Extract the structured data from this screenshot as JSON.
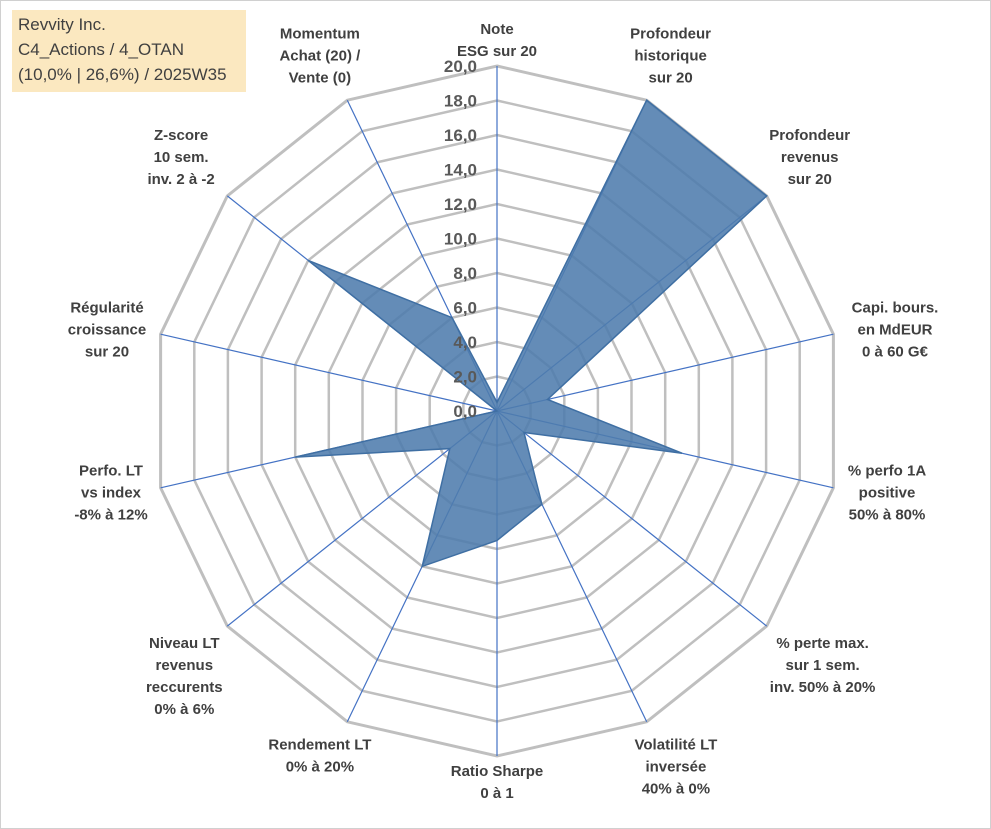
{
  "info": {
    "line1": "Revvity Inc.",
    "line2": "C4_Actions / 4_OTAN",
    "line3": "(10,0% | 26,6%) / 2025W35"
  },
  "chart_data": {
    "type": "radar",
    "title": "",
    "rlim": [
      0,
      20
    ],
    "ticks": [
      "0,0",
      "2,0",
      "4,0",
      "6,0",
      "8,0",
      "10,0",
      "12,0",
      "14,0",
      "16,0",
      "18,0",
      "20,0"
    ],
    "grid": true,
    "axes": [
      {
        "label": [
          "Note",
          "ESG sur 20"
        ],
        "value": 0.5
      },
      {
        "label": [
          "Profondeur",
          "historique",
          "sur 20"
        ],
        "value": 20
      },
      {
        "label": [
          "Profondeur",
          "revenus",
          "sur 20"
        ],
        "value": 20
      },
      {
        "label": [
          "Capi. bours.",
          "en MdEUR",
          "0 à 60 G€"
        ],
        "value": 3
      },
      {
        "label": [
          "% perfo 1A",
          "positive",
          "50% à 80%"
        ],
        "value": 11
      },
      {
        "label": [
          "% perte max.",
          "sur 1 sem.",
          "inv. 50% à 20%"
        ],
        "value": 2
      },
      {
        "label": [
          "Volatilité LT",
          "inversée",
          "40% à 0%"
        ],
        "value": 6
      },
      {
        "label": [
          "Ratio Sharpe",
          "0 à 1"
        ],
        "value": 7.5
      },
      {
        "label": [
          "Rendement LT",
          "0% à 20%"
        ],
        "value": 10
      },
      {
        "label": [
          "Niveau LT",
          "revenus",
          "reccurents",
          "0% à 6%"
        ],
        "value": 3.5
      },
      {
        "label": [
          "Perfo. LT",
          "vs index",
          "-8% à 12%"
        ],
        "value": 12
      },
      {
        "label": [
          "Régularité",
          "croissance",
          "sur 20"
        ],
        "value": 0
      },
      {
        "label": [
          "Z-score",
          "10 sem.",
          "inv. 2 à -2"
        ],
        "value": 14
      },
      {
        "label": [
          "Momentum",
          "Achat (20) /",
          "Vente (0)"
        ],
        "value": 6
      }
    ],
    "colors": {
      "fill": "#4f7cad",
      "stroke": "#3f6fa3",
      "grid": "#bfbfbf",
      "spoke": "#4472c4"
    }
  }
}
